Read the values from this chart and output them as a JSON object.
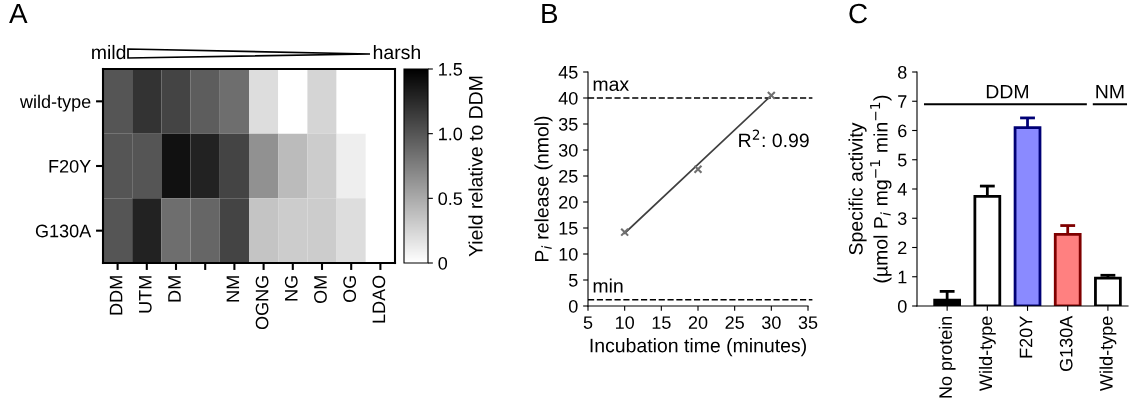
{
  "chart_data": [
    {
      "type": "heatmap",
      "categories": [
        "DDM",
        "UTM",
        "DM",
        null,
        "NM",
        "OGNG",
        "NG",
        "OM",
        "OG",
        "LDAO"
      ],
      "y_categories": [
        "wild-type",
        "F20Y",
        "G130A"
      ],
      "cells": [
        [
          1.0,
          1.2,
          1.1,
          0.95,
          0.85,
          0.2,
          0.0,
          0.25,
          0.0,
          0.0
        ],
        [
          1.0,
          1.0,
          1.4,
          1.3,
          1.1,
          0.65,
          0.4,
          0.3,
          0.1,
          0.0
        ],
        [
          1.0,
          1.3,
          0.85,
          0.9,
          1.1,
          0.35,
          0.3,
          0.3,
          0.2,
          0.0
        ]
      ],
      "clabel": "Yield relative to DDM",
      "clim": [
        0,
        1.5
      ],
      "cticks": [
        0,
        0.5,
        {
          "value": 1,
          "label": "1.0"
        },
        1.5
      ],
      "annotations": [
        "A",
        "mild",
        "harsh"
      ]
    },
    {
      "type": "scatter",
      "x": [
        10,
        20,
        30
      ],
      "values": [
        14.2,
        26.3,
        40.5
      ],
      "color": "#707070",
      "marker": "cross",
      "series": [
        {
          "type": "line",
          "x": [
            10,
            30
          ],
          "values": [
            14.0,
            40.5
          ],
          "color": "#404040",
          "marker": "none"
        }
      ],
      "xlabel": "Incubation time (minutes)",
      "ylabel": "P$_{i}$ release (nmol)",
      "xlim": [
        5,
        35
      ],
      "xticks": [
        5,
        10,
        15,
        20,
        25,
        30,
        35
      ],
      "ylim": [
        0,
        45
      ],
      "yticks": [
        0,
        5,
        10,
        15,
        20,
        25,
        30,
        35,
        40,
        45
      ],
      "ref_lines": [
        {
          "axis": "y",
          "value": 40,
          "label": "max",
          "line_style": "dashed",
          "color": "#000000"
        },
        {
          "axis": "y",
          "value": 1.2,
          "label": "min",
          "line_style": "dashed",
          "color": "#000000"
        }
      ],
      "annotations": [
        "B",
        "R$^{2}$: 0.99"
      ],
      "grid": false
    },
    {
      "type": "bar",
      "categories": [
        "No protein",
        "Wild-type",
        "F20Y",
        "G130A",
        "Wild-type"
      ],
      "values": [
        0.2,
        3.75,
        6.1,
        2.45,
        0.95
      ],
      "colors": [
        "#000000",
        "#ffffff",
        "#8a8aff",
        "#ff8080",
        "#ffffff"
      ],
      "errors": [
        [
          0.2,
          0.5
        ],
        [
          3.75,
          4.1
        ],
        [
          6.1,
          6.43
        ],
        [
          2.45,
          2.75
        ],
        [
          0.95,
          1.05
        ]
      ],
      "ylabel": "Specific activity\n(µmol P$_{i}$ mg$^{−1}$ min$^{−1}$)",
      "ylim": [
        0,
        8
      ],
      "yticks": [
        0,
        1,
        2,
        3,
        4,
        5,
        6,
        7,
        8
      ],
      "annotations": [
        "C",
        "DDM",
        "NM"
      ],
      "grid": false
    }
  ]
}
